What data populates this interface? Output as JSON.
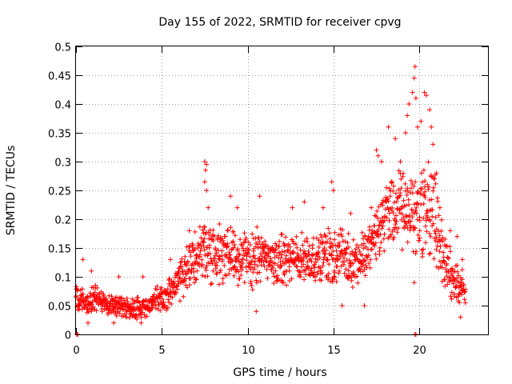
{
  "chart_data": {
    "type": "scatter",
    "title": "Day 155 of 2022, SRMTID for receiver cpvg",
    "xlabel": "GPS time / hours",
    "ylabel": "SRMTID / TECUs",
    "xlim": [
      0,
      24
    ],
    "ylim": [
      0,
      0.5
    ],
    "xticks": [
      "0",
      "5",
      "10",
      "15",
      "20"
    ],
    "yticks": [
      "0",
      "0.05",
      "0.1",
      "0.15",
      "0.2",
      "0.25",
      "0.3",
      "0.35",
      "0.4",
      "0.45",
      "0.5"
    ],
    "xtick_values": [
      0,
      5,
      10,
      15,
      20
    ],
    "ytick_values": [
      0,
      0.05,
      0.1,
      0.15,
      0.2,
      0.25,
      0.3,
      0.35,
      0.4,
      0.45,
      0.5
    ],
    "grid": true,
    "marker": "plus",
    "series": [
      {
        "name": "SRMTID",
        "color": "#ff0000",
        "envelope": {
          "x": [
            0,
            0.5,
            1,
            1.5,
            2,
            2.5,
            3,
            3.5,
            4,
            4.5,
            5,
            5.5,
            6,
            6.5,
            7,
            7.5,
            8,
            8.5,
            9,
            9.5,
            10,
            10.5,
            11,
            11.5,
            12,
            12.5,
            13,
            13.5,
            14,
            14.5,
            15,
            15.5,
            16,
            16.5,
            17,
            17.5,
            18,
            18.5,
            19,
            19.5,
            20,
            20.5,
            21,
            21.5,
            22,
            22.5,
            22.7
          ],
          "low": [
            0.04,
            0.03,
            0.03,
            0.035,
            0.03,
            0.03,
            0.025,
            0.025,
            0.025,
            0.03,
            0.03,
            0.04,
            0.05,
            0.06,
            0.07,
            0.08,
            0.08,
            0.08,
            0.09,
            0.08,
            0.06,
            0.07,
            0.08,
            0.08,
            0.08,
            0.08,
            0.08,
            0.08,
            0.09,
            0.08,
            0.08,
            0.08,
            0.07,
            0.08,
            0.1,
            0.12,
            0.13,
            0.14,
            0.14,
            0.12,
            0.12,
            0.1,
            0.08,
            0.06,
            0.05,
            0.04,
            0.05
          ],
          "high": [
            0.09,
            0.08,
            0.09,
            0.075,
            0.07,
            0.07,
            0.07,
            0.07,
            0.07,
            0.08,
            0.09,
            0.11,
            0.13,
            0.16,
            0.2,
            0.22,
            0.2,
            0.2,
            0.22,
            0.18,
            0.2,
            0.2,
            0.18,
            0.18,
            0.18,
            0.18,
            0.18,
            0.19,
            0.17,
            0.2,
            0.19,
            0.2,
            0.18,
            0.18,
            0.19,
            0.24,
            0.28,
            0.28,
            0.3,
            0.3,
            0.3,
            0.35,
            0.3,
            0.18,
            0.14,
            0.12,
            0.09
          ]
        },
        "peaks": [
          [
            0.4,
            0.13
          ],
          [
            0.9,
            0.11
          ],
          [
            2.5,
            0.1
          ],
          [
            3.9,
            0.1
          ],
          [
            5.5,
            0.13
          ],
          [
            6.6,
            0.18
          ],
          [
            7.5,
            0.3
          ],
          [
            7.6,
            0.295
          ],
          [
            7.55,
            0.285
          ],
          [
            7.5,
            0.265
          ],
          [
            7.6,
            0.25
          ],
          [
            7.7,
            0.22
          ],
          [
            9.0,
            0.24
          ],
          [
            9.4,
            0.22
          ],
          [
            10.7,
            0.24
          ],
          [
            12.6,
            0.22
          ],
          [
            13.3,
            0.23
          ],
          [
            14.4,
            0.22
          ],
          [
            14.9,
            0.265
          ],
          [
            15.0,
            0.25
          ],
          [
            16.0,
            0.21
          ],
          [
            17.2,
            0.22
          ],
          [
            17.5,
            0.32
          ],
          [
            17.6,
            0.31
          ],
          [
            17.8,
            0.3
          ],
          [
            18.2,
            0.36
          ],
          [
            18.6,
            0.34
          ],
          [
            18.9,
            0.3
          ],
          [
            19.2,
            0.35
          ],
          [
            19.3,
            0.38
          ],
          [
            19.4,
            0.4
          ],
          [
            19.75,
            0.465
          ],
          [
            19.7,
            0.445
          ],
          [
            19.6,
            0.42
          ],
          [
            19.8,
            0.41
          ],
          [
            19.9,
            0.36
          ],
          [
            20.1,
            0.37
          ],
          [
            20.3,
            0.42
          ],
          [
            20.4,
            0.415
          ],
          [
            20.6,
            0.39
          ],
          [
            20.7,
            0.36
          ],
          [
            20.8,
            0.33
          ],
          [
            21.0,
            0.28
          ],
          [
            21.2,
            0.22
          ],
          [
            21.8,
            0.18
          ],
          [
            22.2,
            0.17
          ],
          [
            22.5,
            0.13
          ]
        ],
        "lows": [
          [
            0.05,
            0.0
          ],
          [
            0.1,
            0.0
          ],
          [
            19.75,
            0.0
          ],
          [
            19.8,
            0.0
          ],
          [
            19.7,
            0.09
          ],
          [
            10.5,
            0.04
          ],
          [
            2.2,
            0.02
          ],
          [
            3.8,
            0.02
          ],
          [
            0.7,
            0.02
          ],
          [
            15.5,
            0.05
          ],
          [
            16.8,
            0.05
          ],
          [
            22.4,
            0.03
          ]
        ]
      }
    ]
  }
}
